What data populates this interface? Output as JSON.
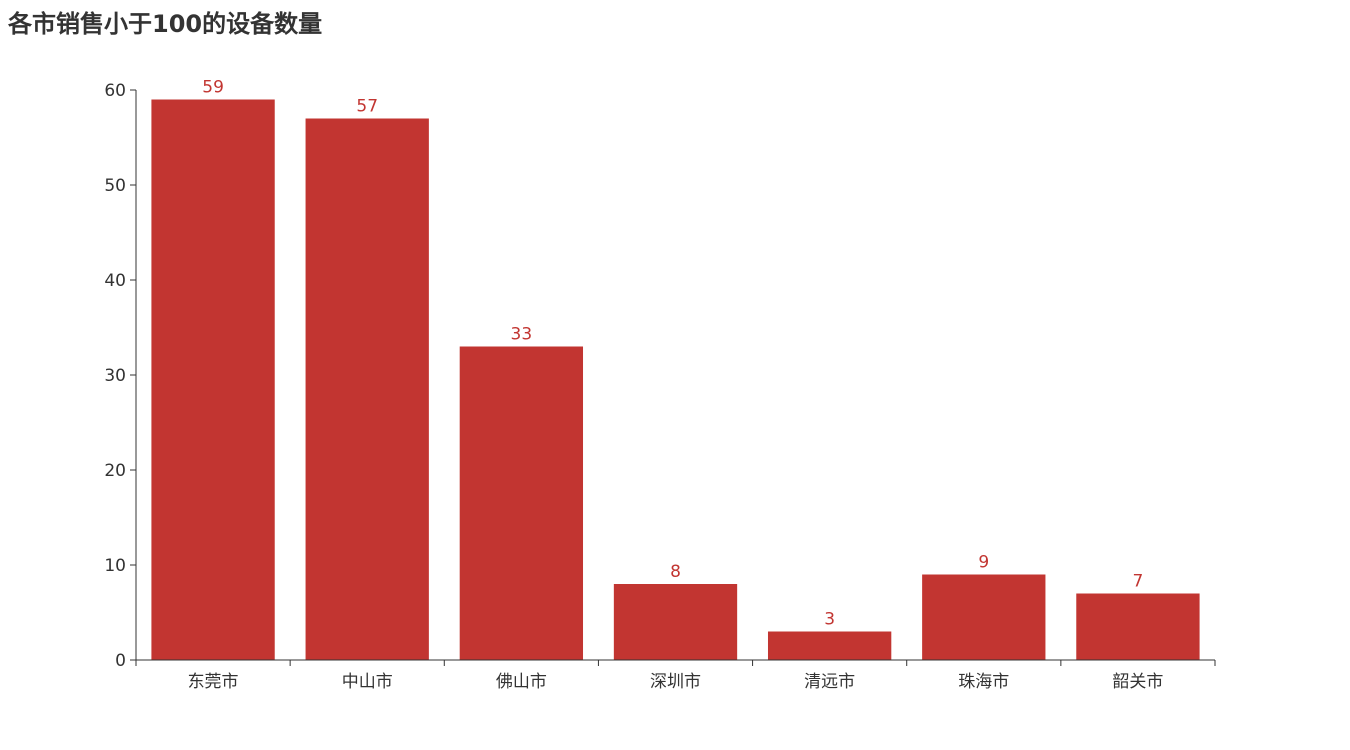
{
  "title": "各市销售小于100的设备数量",
  "colors": {
    "bar": "#c23531",
    "axis": "#333333",
    "text": "#333333"
  },
  "chart_data": {
    "type": "bar",
    "title": "各市销售小于100的设备数量",
    "categories": [
      "东莞市",
      "中山市",
      "佛山市",
      "深圳市",
      "清远市",
      "珠海市",
      "韶关市"
    ],
    "values": [
      59,
      57,
      33,
      8,
      3,
      9,
      7
    ],
    "xlabel": "",
    "ylabel": "",
    "ylim": [
      0,
      60
    ],
    "yticks": [
      0,
      10,
      20,
      30,
      40,
      50,
      60
    ],
    "grid": false,
    "data_labels": true
  }
}
